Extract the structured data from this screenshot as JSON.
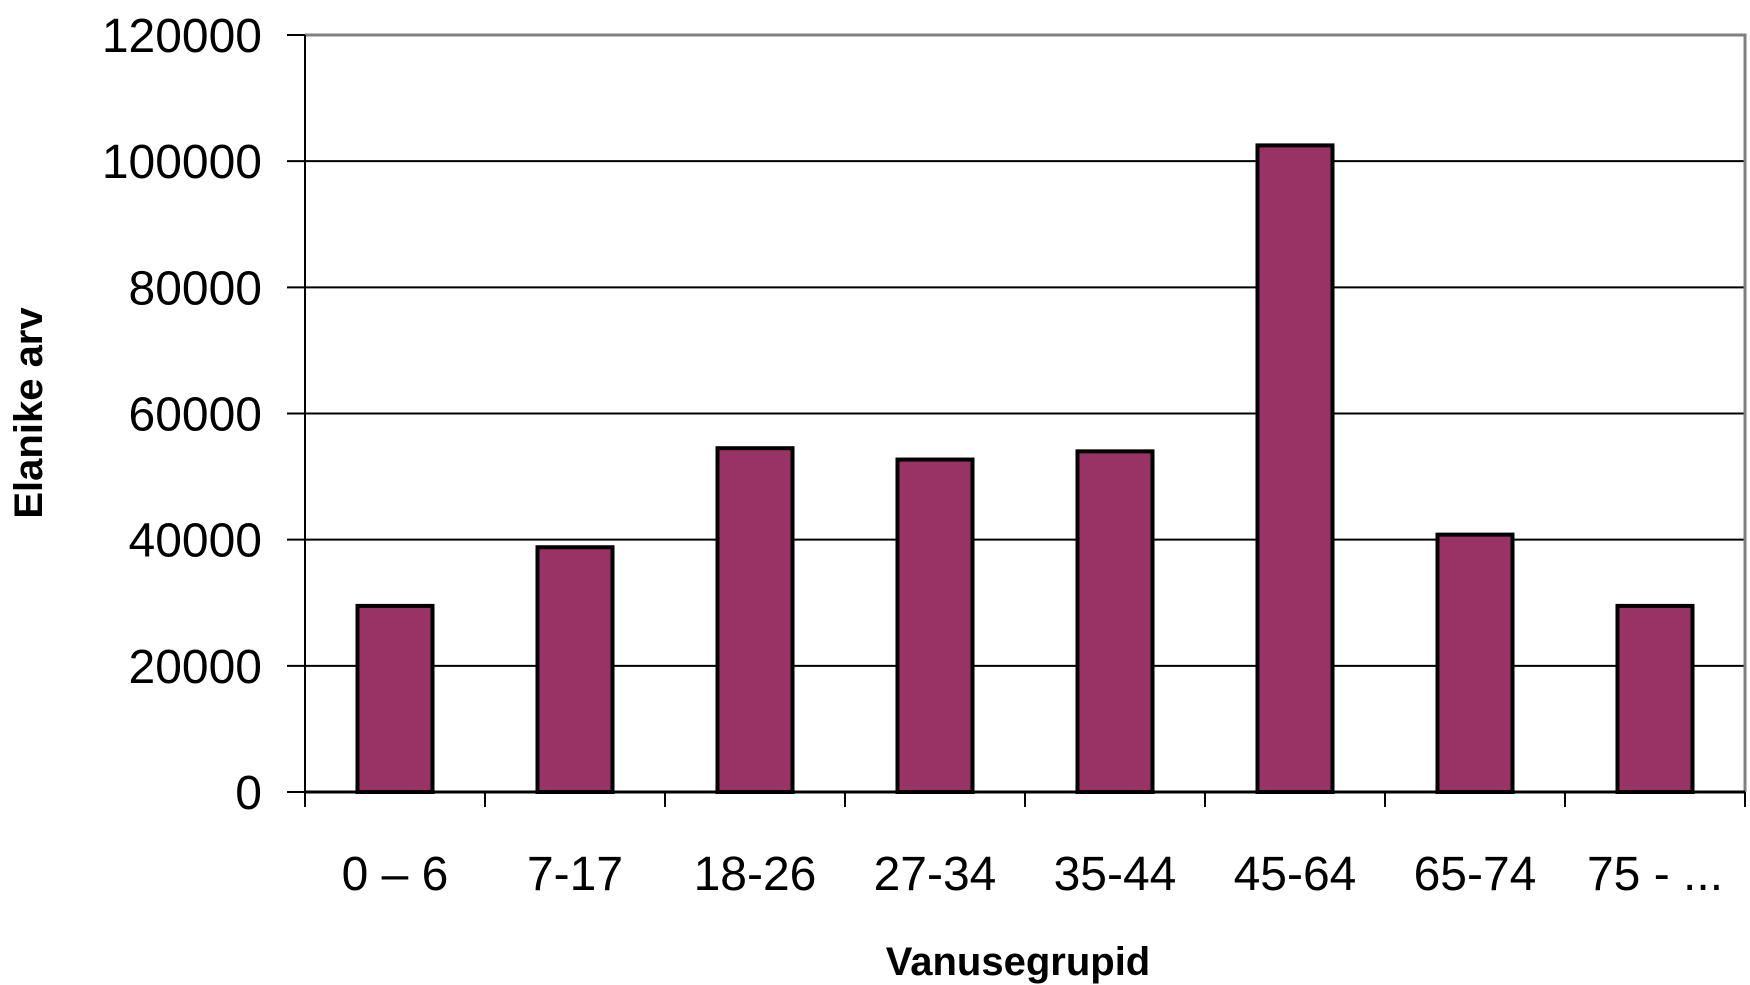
{
  "chart_data": {
    "type": "bar",
    "title": "",
    "xlabel": "Vanusegrupid",
    "ylabel": "Elanike arv",
    "categories": [
      "0 – 6",
      "7-17",
      "18-26",
      "27-34",
      "35-44",
      "45-64",
      "65-74",
      "75 - ..."
    ],
    "values": [
      29500,
      38800,
      54500,
      52700,
      54000,
      102500,
      40800,
      29500
    ],
    "ylim": [
      0,
      120000
    ],
    "yticks": [
      0,
      20000,
      40000,
      60000,
      80000,
      100000,
      120000
    ],
    "grid": true,
    "legend": "none",
    "colors": {
      "bar": "#993366",
      "bar_border": "#000000",
      "grid": "#000000",
      "frame_right_top": "#808080"
    }
  }
}
